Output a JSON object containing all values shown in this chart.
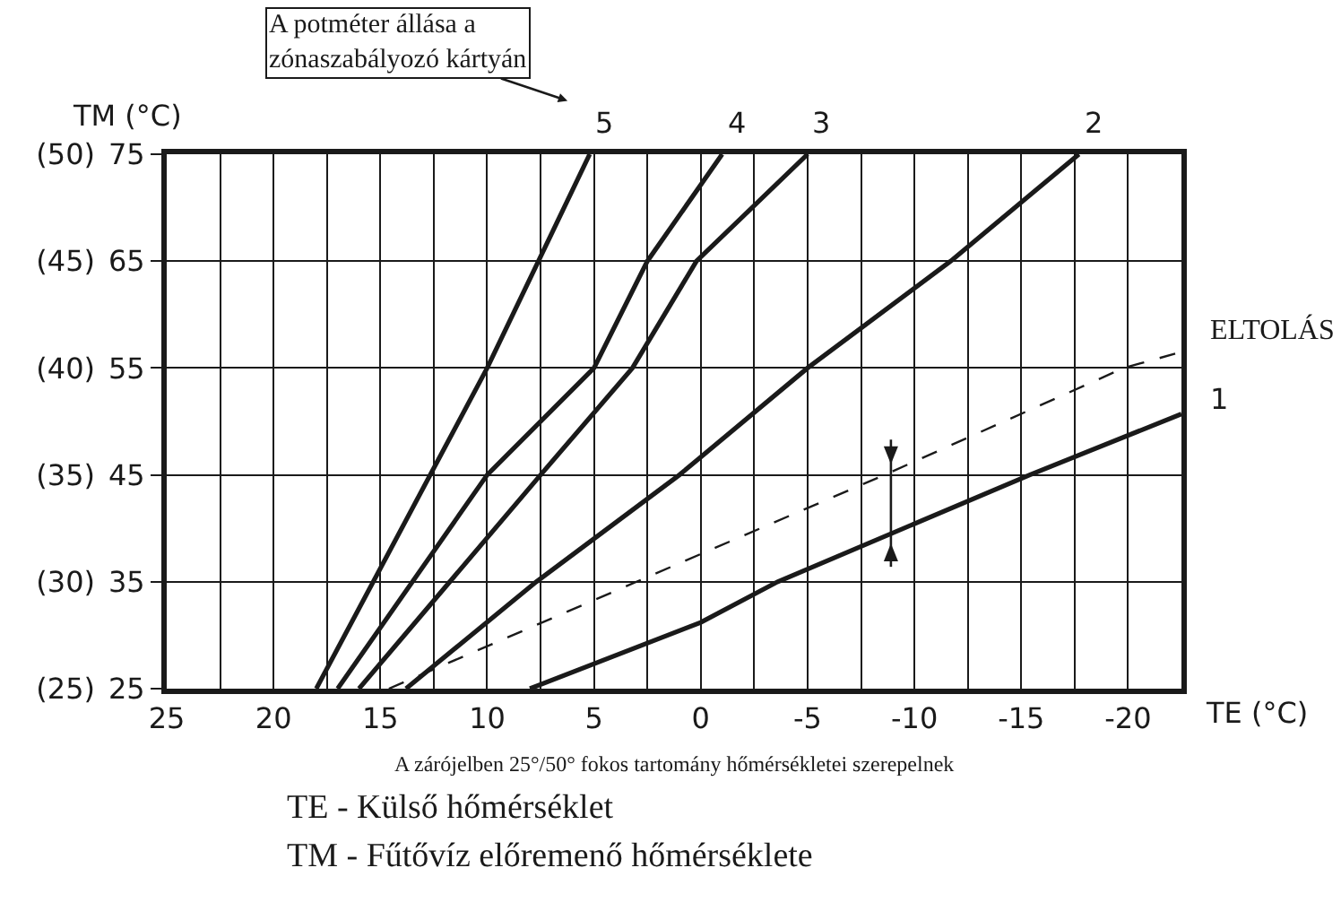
{
  "chart_data": {
    "type": "line",
    "xlabel": "TE (°C)",
    "ylabel": "TM (°C)",
    "xlim": [
      25,
      -22.5
    ],
    "xticks": [
      25,
      {
        "value": 22.5,
        "label": null
      },
      20,
      {
        "value": 17.5,
        "label": null
      },
      15,
      {
        "value": 12.5,
        "label": null
      },
      10,
      {
        "value": 7.5,
        "label": null
      },
      5,
      {
        "value": 2.5,
        "label": null
      },
      0,
      {
        "value": -2.5,
        "label": null
      },
      -5,
      {
        "value": -7.5,
        "label": null
      },
      -10,
      {
        "value": -12.5,
        "label": null
      },
      -15,
      {
        "value": -17.5,
        "label": null
      },
      -20
    ],
    "ylim": [
      25,
      75
    ],
    "yticks": [
      25,
      35,
      45,
      55,
      65,
      75
    ],
    "y2lim": [
      25,
      50
    ],
    "y2ticks": [
      {
        "value": 25,
        "label": "(25)"
      },
      {
        "value": 30,
        "label": "(30)"
      },
      {
        "value": 35,
        "label": "(35)"
      },
      {
        "value": 40,
        "label": "(40)"
      },
      {
        "value": 45,
        "label": "(45)"
      },
      {
        "value": 50,
        "label": "(50)"
      }
    ],
    "grid": true,
    "legend": false,
    "marker": "none",
    "series": [
      {
        "name": "5",
        "color": "#1a1a1a",
        "x": [
          18,
          10,
          5.2
        ],
        "values": [
          25,
          55,
          75
        ]
      },
      {
        "name": "4",
        "color": "#1a1a1a",
        "x": [
          17,
          10,
          5,
          2.5,
          -1
        ],
        "values": [
          25,
          45,
          55,
          65,
          75
        ]
      },
      {
        "name": "3",
        "color": "#1a1a1a",
        "x": [
          16,
          7.5,
          3.2,
          0.2,
          -5
        ],
        "values": [
          25,
          45,
          55,
          65,
          75
        ]
      },
      {
        "name": "2",
        "color": "#1a1a1a",
        "x": [
          13.8,
          7.7,
          1,
          -5,
          -11.7,
          -17.7
        ],
        "values": [
          25,
          35,
          45,
          55,
          65,
          75
        ]
      },
      {
        "name": "1",
        "color": "#1a1a1a",
        "x": [
          8,
          0,
          -3.6,
          -15.4,
          -22.5
        ],
        "values": [
          25,
          31.2,
          35,
          45,
          50.7
        ]
      },
      {
        "name": "ELTOLÁS",
        "color": "#1a1a1a",
        "line_style": "dashed",
        "x": [
          14.6,
          -0.7,
          -8.6,
          -19.8,
          -22.5
        ],
        "values": [
          25,
          38.2,
          45,
          55,
          56.5
        ]
      }
    ],
    "annotations": [
      "A potméter állása a\nzónaszabályozó kártyán",
      "A zárójelben 25°/50° fokos tartomány hőmérsékletei szerepelnek",
      "TE - Külső hőmérséklet",
      "TM - Fűtővíz előremenő hőmérséklete"
    ]
  }
}
